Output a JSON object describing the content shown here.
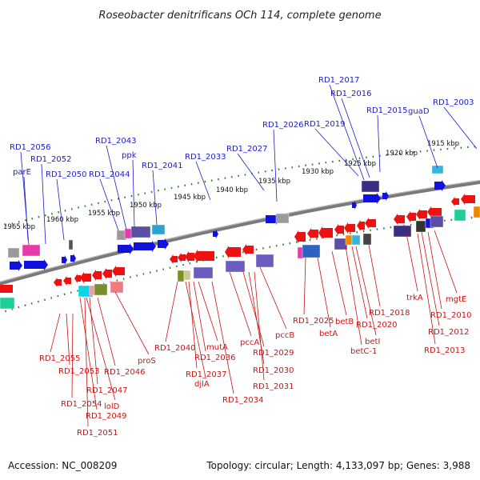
{
  "title": "Roseobacter denitrificans OCh 114, complete genome",
  "footer": {
    "accession": "Accession: NC_008209",
    "summary": "Topology: circular; Length: 4,133,097 bp; Genes: 3,988"
  },
  "colors": {
    "forward_label": "#1c1ccc",
    "reverse_label": "#cc1414",
    "backbone": "#7a7a7a",
    "tick": "#1f7a1f"
  },
  "kbp_labels": [
    "1965 kbp",
    "1960 kbp",
    "1955 kbp",
    "1950 kbp",
    "1945 kbp",
    "1940 kbp",
    "1935 kbp",
    "1930 kbp",
    "1925 kbp",
    "1920 kbp",
    "1915 kbp"
  ],
  "forward_genes": [
    "RD1_2056",
    "RD1_2052",
    "parE",
    "RD1_2050",
    "RD1_2043",
    "ppk",
    "RD1_2044",
    "RD1_2041",
    "RD1_2033",
    "RD1_2027",
    "RD1_2026",
    "RD1_2019",
    "RD1_2017",
    "RD1_2016",
    "RD1_2015",
    "guaD",
    "RD1_2003"
  ],
  "reverse_genes": [
    "proS",
    "RD1_2055",
    "RD1_2053",
    "RD1_2046",
    "RD1_2047",
    "RD1_2054",
    "lolD",
    "RD1_2049",
    "RD1_2051",
    "RD1_2040",
    "mutA",
    "RD1_2036",
    "RD1_2037",
    "djlA",
    "RD1_2034",
    "pccA",
    "RD1_2029",
    "pccB",
    "RD1_2030",
    "RD1_2031",
    "RD1_2025",
    "betA",
    "betB",
    "betI",
    "betC-1",
    "RD1_2020",
    "RD1_2018",
    "trkA",
    "mgtE",
    "RD1_2010",
    "RD1_2012",
    "RD1_2013"
  ]
}
